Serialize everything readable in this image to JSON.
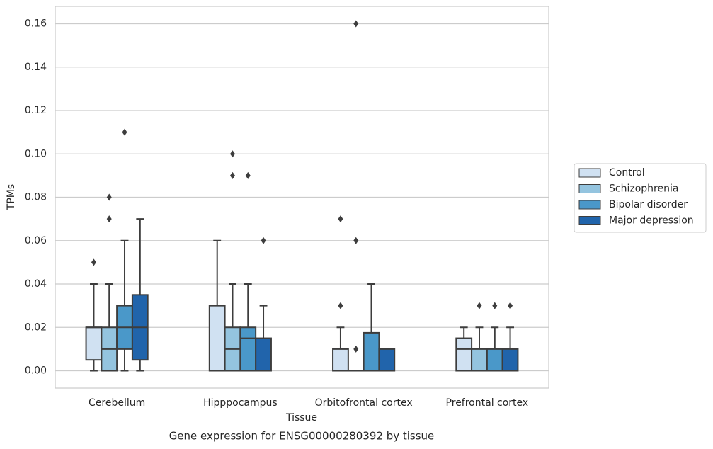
{
  "chart_data": {
    "type": "box",
    "title": "Gene expression for ENSG00000280392 by tissue",
    "x_label": "Tissue",
    "y_label": "TPMs",
    "categories": [
      "Cerebellum",
      "Hipppocampus",
      "Orbitofrontal cortex",
      "Prefrontal cortex"
    ],
    "ylim": [
      -0.008,
      0.168
    ],
    "yticks": [
      {
        "value": 0,
        "label": "0.00"
      },
      {
        "value": 0.02,
        "label": "0.02"
      },
      {
        "value": 0.04,
        "label": "0.04"
      },
      {
        "value": 0.06,
        "label": "0.06"
      },
      {
        "value": 0.08,
        "label": "0.08"
      },
      {
        "value": 0.1,
        "label": "0.10"
      },
      {
        "value": 0.12,
        "label": "0.12"
      },
      {
        "value": 0.14,
        "label": "0.14"
      },
      {
        "value": 0.16,
        "label": "0.16"
      }
    ],
    "grid": true,
    "legend_position": "right",
    "series": [
      {
        "name": "Control",
        "color": "#d0e1f2",
        "boxes": [
          {
            "whislo": 0,
            "q1": 0.005,
            "med": 0.02,
            "q3": 0.02,
            "whishi": 0.04,
            "fliers": [
              0.05
            ]
          },
          {
            "whislo": 0,
            "q1": 0,
            "med": 0,
            "q3": 0.03,
            "whishi": 0.06,
            "fliers": []
          },
          {
            "whislo": 0,
            "q1": 0,
            "med": 0,
            "q3": 0.01,
            "whishi": 0.02,
            "fliers": [
              0.03,
              0.07
            ]
          },
          {
            "whislo": 0,
            "q1": 0,
            "med": 0.01,
            "q3": 0.015,
            "whishi": 0.02,
            "fliers": []
          }
        ]
      },
      {
        "name": "Schizophrenia",
        "color": "#94c4df",
        "boxes": [
          {
            "whislo": 0,
            "q1": 0,
            "med": 0.01,
            "q3": 0.02,
            "whishi": 0.04,
            "fliers": [
              0.07,
              0.08
            ]
          },
          {
            "whislo": 0,
            "q1": 0,
            "med": 0.01,
            "q3": 0.02,
            "whishi": 0.04,
            "fliers": [
              0.09,
              0.1
            ]
          },
          {
            "whislo": 0,
            "q1": 0,
            "med": 0,
            "q3": 0,
            "whishi": 0,
            "fliers": [
              0.01,
              0.06,
              0.16
            ]
          },
          {
            "whislo": 0,
            "q1": 0,
            "med": 0,
            "q3": 0.01,
            "whishi": 0.02,
            "fliers": [
              0.03
            ]
          }
        ]
      },
      {
        "name": "Bipolar disorder",
        "color": "#4a98c9",
        "boxes": [
          {
            "whislo": 0,
            "q1": 0.01,
            "med": 0.02,
            "q3": 0.03,
            "whishi": 0.06,
            "fliers": [
              0.11
            ]
          },
          {
            "whislo": 0,
            "q1": 0,
            "med": 0.015,
            "q3": 0.02,
            "whishi": 0.04,
            "fliers": [
              0.09
            ]
          },
          {
            "whislo": 0,
            "q1": 0,
            "med": 0,
            "q3": 0.0175,
            "whishi": 0.04,
            "fliers": []
          },
          {
            "whislo": 0,
            "q1": 0,
            "med": 0,
            "q3": 0.01,
            "whishi": 0.02,
            "fliers": [
              0.03
            ]
          }
        ]
      },
      {
        "name": "Major depression",
        "color": "#2164ab",
        "boxes": [
          {
            "whislo": 0,
            "q1": 0.005,
            "med": 0.02,
            "q3": 0.035,
            "whishi": 0.07,
            "fliers": []
          },
          {
            "whislo": 0,
            "q1": 0,
            "med": 0,
            "q3": 0.015,
            "whishi": 0.03,
            "fliers": [
              0.06
            ]
          },
          {
            "whislo": 0,
            "q1": 0,
            "med": 0,
            "q3": 0.01,
            "whishi": 0.01,
            "fliers": []
          },
          {
            "whislo": 0,
            "q1": 0,
            "med": 0,
            "q3": 0.01,
            "whishi": 0.02,
            "fliers": [
              0.03
            ]
          }
        ]
      }
    ]
  }
}
